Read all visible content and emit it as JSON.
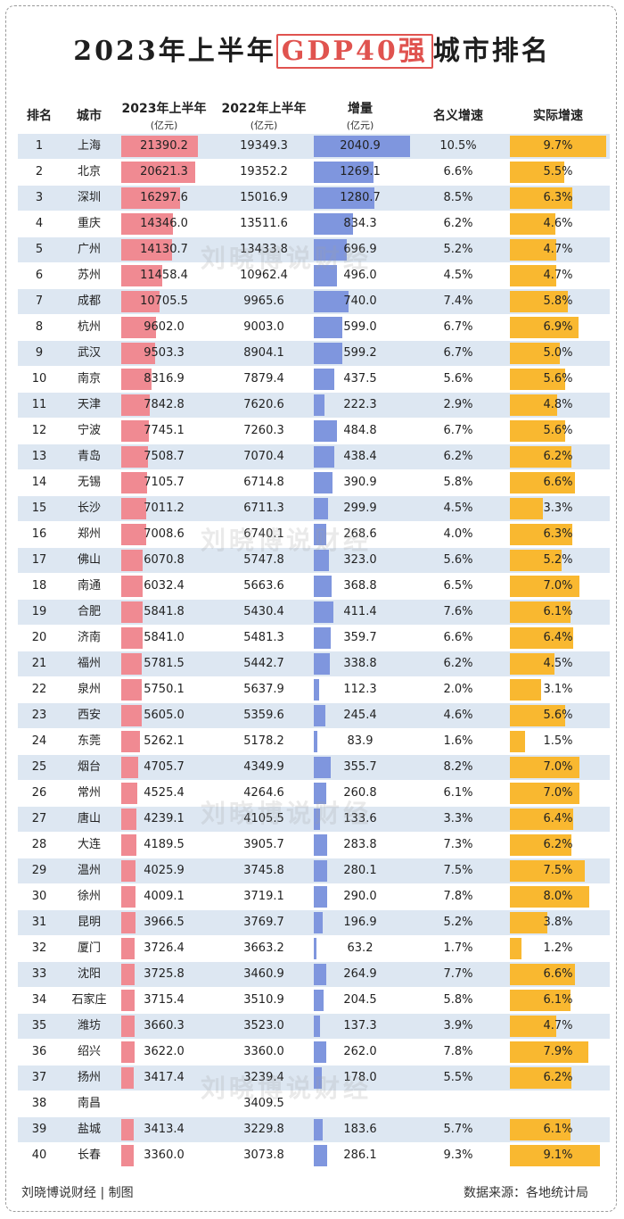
{
  "title": {
    "prefix": "2023年上半年",
    "highlight": "GDP40强",
    "suffix": "城市排名"
  },
  "headers": {
    "rank": "排名",
    "city": "城市",
    "gdp2023": "2023年上半年",
    "gdp2023_unit": "(亿元)",
    "gdp2022": "2022年上半年",
    "gdp2022_unit": "(亿元)",
    "increase": "增量",
    "increase_unit": "(亿元)",
    "nominal": "名义增速",
    "real": "实际增速"
  },
  "rows": [
    {
      "rank": "1",
      "city": "上海",
      "gdp2023": "21390.2",
      "gdp2022": "19349.3",
      "increase": "2040.9",
      "nominal": "10.5%",
      "real": "9.7%",
      "v23": 21390.2,
      "vinc": 2040.9,
      "vreal": 9.7
    },
    {
      "rank": "2",
      "city": "北京",
      "gdp2023": "20621.3",
      "gdp2022": "19352.2",
      "increase": "1269.1",
      "nominal": "6.6%",
      "real": "5.5%",
      "v23": 20621.3,
      "vinc": 1269.1,
      "vreal": 5.5
    },
    {
      "rank": "3",
      "city": "深圳",
      "gdp2023": "16297.6",
      "gdp2022": "15016.9",
      "increase": "1280.7",
      "nominal": "8.5%",
      "real": "6.3%",
      "v23": 16297.6,
      "vinc": 1280.7,
      "vreal": 6.3
    },
    {
      "rank": "4",
      "city": "重庆",
      "gdp2023": "14346.0",
      "gdp2022": "13511.6",
      "increase": "834.3",
      "nominal": "6.2%",
      "real": "4.6%",
      "v23": 14346.0,
      "vinc": 834.3,
      "vreal": 4.6
    },
    {
      "rank": "5",
      "city": "广州",
      "gdp2023": "14130.7",
      "gdp2022": "13433.8",
      "increase": "696.9",
      "nominal": "5.2%",
      "real": "4.7%",
      "v23": 14130.7,
      "vinc": 696.9,
      "vreal": 4.7
    },
    {
      "rank": "6",
      "city": "苏州",
      "gdp2023": "11458.4",
      "gdp2022": "10962.4",
      "increase": "496.0",
      "nominal": "4.5%",
      "real": "4.7%",
      "v23": 11458.4,
      "vinc": 496.0,
      "vreal": 4.7
    },
    {
      "rank": "7",
      "city": "成都",
      "gdp2023": "10705.5",
      "gdp2022": "9965.6",
      "increase": "740.0",
      "nominal": "7.4%",
      "real": "5.8%",
      "v23": 10705.5,
      "vinc": 740.0,
      "vreal": 5.8
    },
    {
      "rank": "8",
      "city": "杭州",
      "gdp2023": "9602.0",
      "gdp2022": "9003.0",
      "increase": "599.0",
      "nominal": "6.7%",
      "real": "6.9%",
      "v23": 9602.0,
      "vinc": 599.0,
      "vreal": 6.9
    },
    {
      "rank": "9",
      "city": "武汉",
      "gdp2023": "9503.3",
      "gdp2022": "8904.1",
      "increase": "599.2",
      "nominal": "6.7%",
      "real": "5.0%",
      "v23": 9503.3,
      "vinc": 599.2,
      "vreal": 5.0
    },
    {
      "rank": "10",
      "city": "南京",
      "gdp2023": "8316.9",
      "gdp2022": "7879.4",
      "increase": "437.5",
      "nominal": "5.6%",
      "real": "5.6%",
      "v23": 8316.9,
      "vinc": 437.5,
      "vreal": 5.6
    },
    {
      "rank": "11",
      "city": "天津",
      "gdp2023": "7842.8",
      "gdp2022": "7620.6",
      "increase": "222.3",
      "nominal": "2.9%",
      "real": "4.8%",
      "v23": 7842.8,
      "vinc": 222.3,
      "vreal": 4.8
    },
    {
      "rank": "12",
      "city": "宁波",
      "gdp2023": "7745.1",
      "gdp2022": "7260.3",
      "increase": "484.8",
      "nominal": "6.7%",
      "real": "5.6%",
      "v23": 7745.1,
      "vinc": 484.8,
      "vreal": 5.6
    },
    {
      "rank": "13",
      "city": "青岛",
      "gdp2023": "7508.7",
      "gdp2022": "7070.4",
      "increase": "438.4",
      "nominal": "6.2%",
      "real": "6.2%",
      "v23": 7508.7,
      "vinc": 438.4,
      "vreal": 6.2
    },
    {
      "rank": "14",
      "city": "无锡",
      "gdp2023": "7105.7",
      "gdp2022": "6714.8",
      "increase": "390.9",
      "nominal": "5.8%",
      "real": "6.6%",
      "v23": 7105.7,
      "vinc": 390.9,
      "vreal": 6.6
    },
    {
      "rank": "15",
      "city": "长沙",
      "gdp2023": "7011.2",
      "gdp2022": "6711.3",
      "increase": "299.9",
      "nominal": "4.5%",
      "real": "3.3%",
      "v23": 7011.2,
      "vinc": 299.9,
      "vreal": 3.3
    },
    {
      "rank": "16",
      "city": "郑州",
      "gdp2023": "7008.6",
      "gdp2022": "6740.1",
      "increase": "268.6",
      "nominal": "4.0%",
      "real": "6.3%",
      "v23": 7008.6,
      "vinc": 268.6,
      "vreal": 6.3
    },
    {
      "rank": "17",
      "city": "佛山",
      "gdp2023": "6070.8",
      "gdp2022": "5747.8",
      "increase": "323.0",
      "nominal": "5.6%",
      "real": "5.2%",
      "v23": 6070.8,
      "vinc": 323.0,
      "vreal": 5.2
    },
    {
      "rank": "18",
      "city": "南通",
      "gdp2023": "6032.4",
      "gdp2022": "5663.6",
      "increase": "368.8",
      "nominal": "6.5%",
      "real": "7.0%",
      "v23": 6032.4,
      "vinc": 368.8,
      "vreal": 7.0
    },
    {
      "rank": "19",
      "city": "合肥",
      "gdp2023": "5841.8",
      "gdp2022": "5430.4",
      "increase": "411.4",
      "nominal": "7.6%",
      "real": "6.1%",
      "v23": 5841.8,
      "vinc": 411.4,
      "vreal": 6.1
    },
    {
      "rank": "20",
      "city": "济南",
      "gdp2023": "5841.0",
      "gdp2022": "5481.3",
      "increase": "359.7",
      "nominal": "6.6%",
      "real": "6.4%",
      "v23": 5841.0,
      "vinc": 359.7,
      "vreal": 6.4
    },
    {
      "rank": "21",
      "city": "福州",
      "gdp2023": "5781.5",
      "gdp2022": "5442.7",
      "increase": "338.8",
      "nominal": "6.2%",
      "real": "4.5%",
      "v23": 5781.5,
      "vinc": 338.8,
      "vreal": 4.5
    },
    {
      "rank": "22",
      "city": "泉州",
      "gdp2023": "5750.1",
      "gdp2022": "5637.9",
      "increase": "112.3",
      "nominal": "2.0%",
      "real": "3.1%",
      "v23": 5750.1,
      "vinc": 112.3,
      "vreal": 3.1
    },
    {
      "rank": "23",
      "city": "西安",
      "gdp2023": "5605.0",
      "gdp2022": "5359.6",
      "increase": "245.4",
      "nominal": "4.6%",
      "real": "5.6%",
      "v23": 5605.0,
      "vinc": 245.4,
      "vreal": 5.6
    },
    {
      "rank": "24",
      "city": "东莞",
      "gdp2023": "5262.1",
      "gdp2022": "5178.2",
      "increase": "83.9",
      "nominal": "1.6%",
      "real": "1.5%",
      "v23": 5262.1,
      "vinc": 83.9,
      "vreal": 1.5
    },
    {
      "rank": "25",
      "city": "烟台",
      "gdp2023": "4705.7",
      "gdp2022": "4349.9",
      "increase": "355.7",
      "nominal": "8.2%",
      "real": "7.0%",
      "v23": 4705.7,
      "vinc": 355.7,
      "vreal": 7.0
    },
    {
      "rank": "26",
      "city": "常州",
      "gdp2023": "4525.4",
      "gdp2022": "4264.6",
      "increase": "260.8",
      "nominal": "6.1%",
      "real": "7.0%",
      "v23": 4525.4,
      "vinc": 260.8,
      "vreal": 7.0
    },
    {
      "rank": "27",
      "city": "唐山",
      "gdp2023": "4239.1",
      "gdp2022": "4105.5",
      "increase": "133.6",
      "nominal": "3.3%",
      "real": "6.4%",
      "v23": 4239.1,
      "vinc": 133.6,
      "vreal": 6.4
    },
    {
      "rank": "28",
      "city": "大连",
      "gdp2023": "4189.5",
      "gdp2022": "3905.7",
      "increase": "283.8",
      "nominal": "7.3%",
      "real": "6.2%",
      "v23": 4189.5,
      "vinc": 283.8,
      "vreal": 6.2
    },
    {
      "rank": "29",
      "city": "温州",
      "gdp2023": "4025.9",
      "gdp2022": "3745.8",
      "increase": "280.1",
      "nominal": "7.5%",
      "real": "7.5%",
      "v23": 4025.9,
      "vinc": 280.1,
      "vreal": 7.5
    },
    {
      "rank": "30",
      "city": "徐州",
      "gdp2023": "4009.1",
      "gdp2022": "3719.1",
      "increase": "290.0",
      "nominal": "7.8%",
      "real": "8.0%",
      "v23": 4009.1,
      "vinc": 290.0,
      "vreal": 8.0
    },
    {
      "rank": "31",
      "city": "昆明",
      "gdp2023": "3966.5",
      "gdp2022": "3769.7",
      "increase": "196.9",
      "nominal": "5.2%",
      "real": "3.8%",
      "v23": 3966.5,
      "vinc": 196.9,
      "vreal": 3.8
    },
    {
      "rank": "32",
      "city": "厦门",
      "gdp2023": "3726.4",
      "gdp2022": "3663.2",
      "increase": "63.2",
      "nominal": "1.7%",
      "real": "1.2%",
      "v23": 3726.4,
      "vinc": 63.2,
      "vreal": 1.2
    },
    {
      "rank": "33",
      "city": "沈阳",
      "gdp2023": "3725.8",
      "gdp2022": "3460.9",
      "increase": "264.9",
      "nominal": "7.7%",
      "real": "6.6%",
      "v23": 3725.8,
      "vinc": 264.9,
      "vreal": 6.6
    },
    {
      "rank": "34",
      "city": "石家庄",
      "gdp2023": "3715.4",
      "gdp2022": "3510.9",
      "increase": "204.5",
      "nominal": "5.8%",
      "real": "6.1%",
      "v23": 3715.4,
      "vinc": 204.5,
      "vreal": 6.1
    },
    {
      "rank": "35",
      "city": "潍坊",
      "gdp2023": "3660.3",
      "gdp2022": "3523.0",
      "increase": "137.3",
      "nominal": "3.9%",
      "real": "4.7%",
      "v23": 3660.3,
      "vinc": 137.3,
      "vreal": 4.7
    },
    {
      "rank": "36",
      "city": "绍兴",
      "gdp2023": "3622.0",
      "gdp2022": "3360.0",
      "increase": "262.0",
      "nominal": "7.8%",
      "real": "7.9%",
      "v23": 3622.0,
      "vinc": 262.0,
      "vreal": 7.9
    },
    {
      "rank": "37",
      "city": "扬州",
      "gdp2023": "3417.4",
      "gdp2022": "3239.4",
      "increase": "178.0",
      "nominal": "5.5%",
      "real": "6.2%",
      "v23": 3417.4,
      "vinc": 178.0,
      "vreal": 6.2
    },
    {
      "rank": "38",
      "city": "南昌",
      "gdp2023": "",
      "gdp2022": "3409.5",
      "increase": "",
      "nominal": "",
      "real": "",
      "v23": 0,
      "vinc": 0,
      "vreal": 0
    },
    {
      "rank": "39",
      "city": "盐城",
      "gdp2023": "3413.4",
      "gdp2022": "3229.8",
      "increase": "183.6",
      "nominal": "5.7%",
      "real": "6.1%",
      "v23": 3413.4,
      "vinc": 183.6,
      "vreal": 6.1
    },
    {
      "rank": "40",
      "city": "长春",
      "gdp2023": "3360.0",
      "gdp2022": "3073.8",
      "increase": "286.1",
      "nominal": "9.3%",
      "real": "9.1%",
      "v23": 3360.0,
      "vinc": 286.1,
      "vreal": 9.1
    }
  ],
  "colors": {
    "gdp_bar": "#f08a92",
    "increase_bar": "#7f96de",
    "real_bar": "#f9b830",
    "alt_row": "#dde7f2",
    "highlight": "#e0534f"
  },
  "watermark": "刘晓博说财经",
  "footer": {
    "left": "刘晓博说财经 | 制图",
    "right": "数据来源：各地统计局"
  }
}
